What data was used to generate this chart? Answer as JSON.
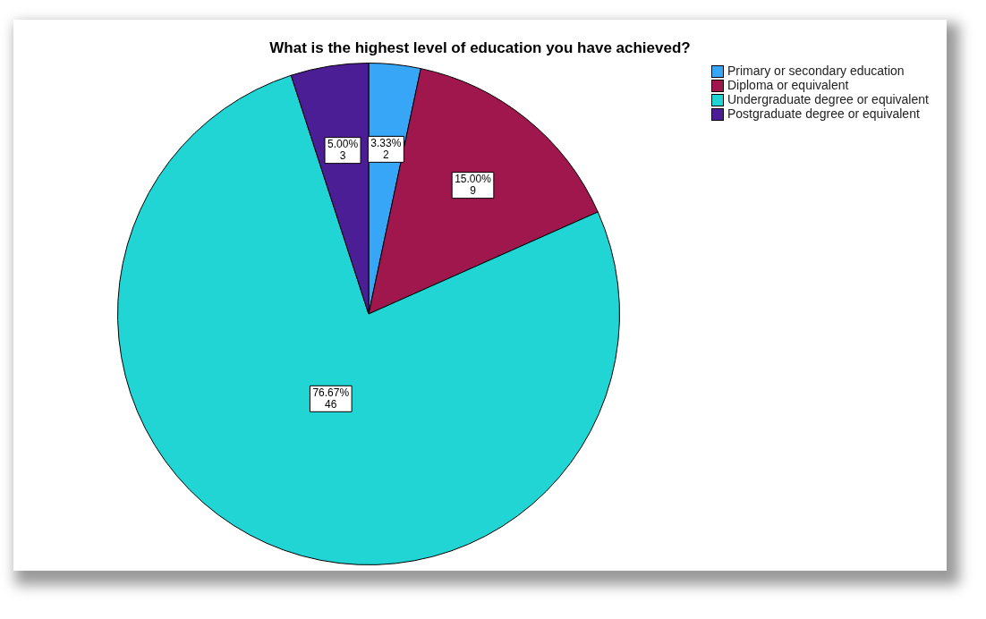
{
  "chart_data": {
    "type": "pie",
    "title": "What is the highest level of education you have achieved?",
    "categories": [
      "Primary or secondary education",
      "Diploma or equivalent",
      "Undergraduate degree or equivalent",
      "Postgraduate degree or equivalent"
    ],
    "values": [
      2,
      9,
      46,
      3
    ],
    "colors": [
      "#38a6f6",
      "#a0174e",
      "#22d5d5",
      "#4b1e96"
    ],
    "value_labels": [
      "3.33%\n2",
      "15.00%\n9",
      "76.67%\n46",
      "5.00%\n3"
    ],
    "legend": "top right"
  }
}
